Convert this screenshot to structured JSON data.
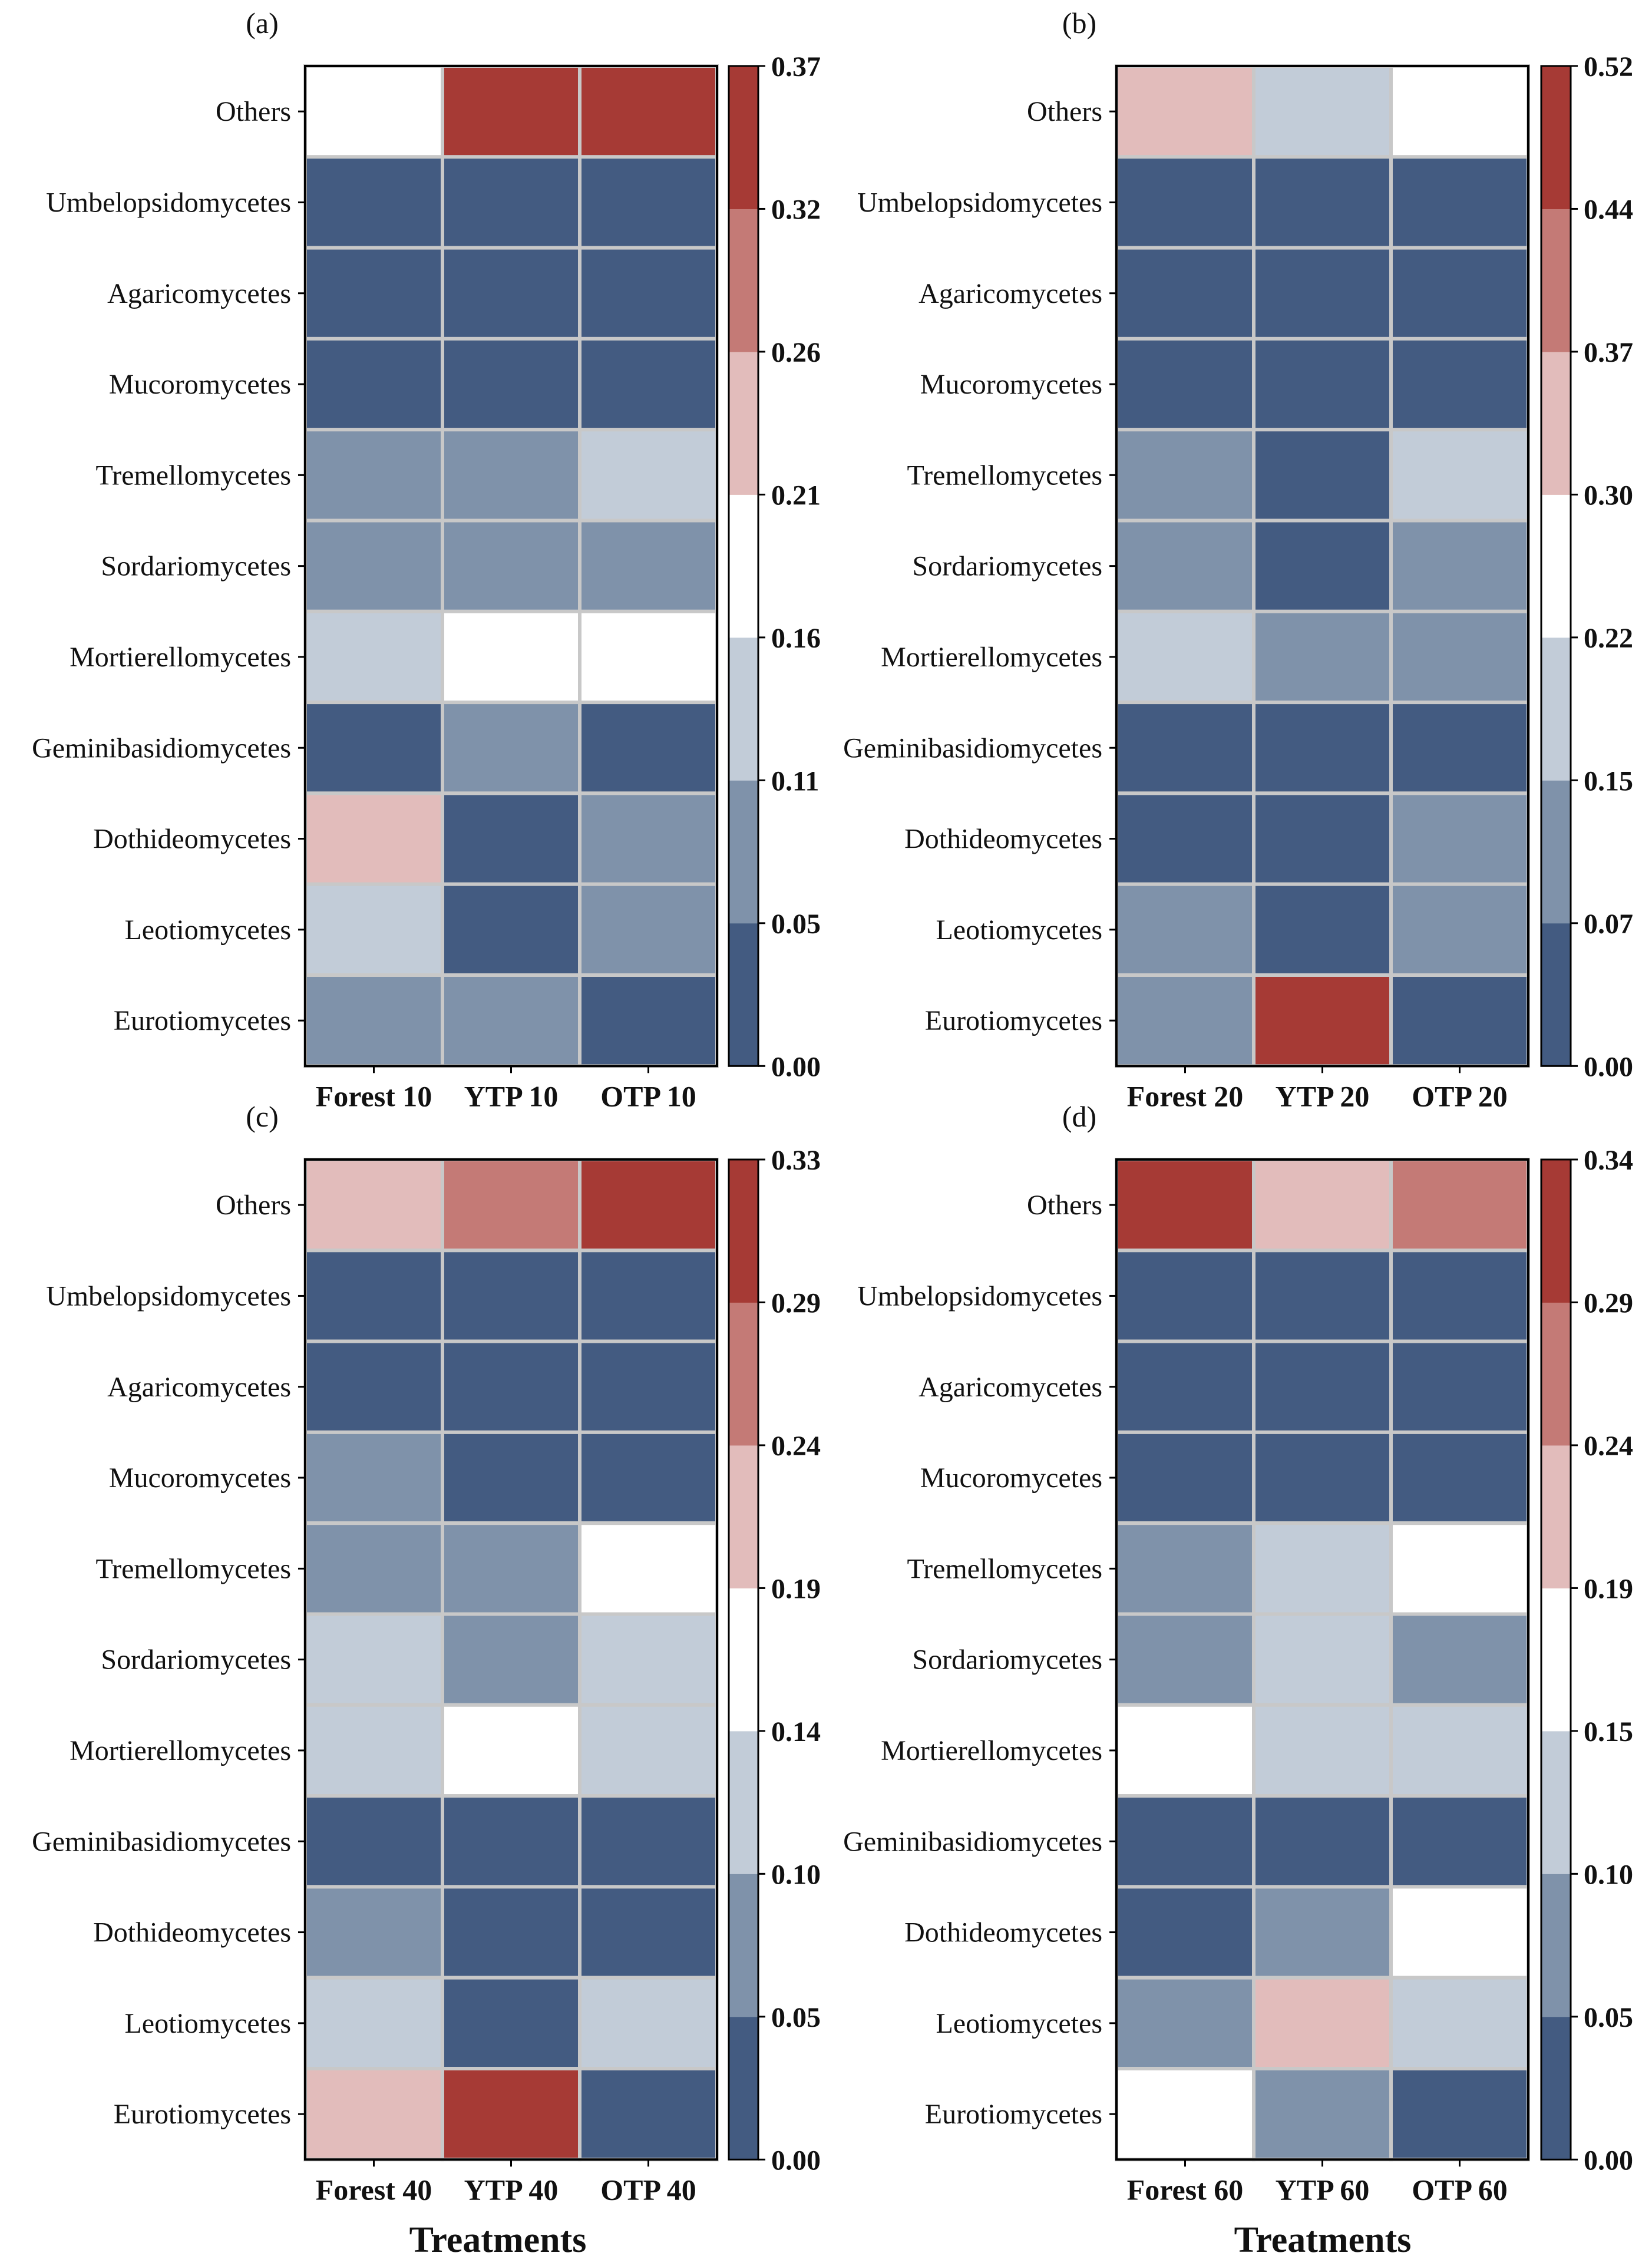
{
  "colors": {
    "bins": [
      "#435b81",
      "#7f92aa",
      "#c2ccd8",
      "#ffffff",
      "#e2bcbb",
      "#c47a76",
      "#a63a35"
    ],
    "grid": "#c8c8c8"
  },
  "xlabel": "Treatments",
  "chart_data": [
    {
      "type": "heatmap",
      "panel": "(a)",
      "rows": [
        "Others",
        "Umbelopsidomycetes",
        "Agaricomycetes",
        "Mucoromycetes",
        "Tremellomycetes",
        "Sordariomycetes",
        "Mortierellomycetes",
        "Geminibasidiomycetes",
        "Dothideomycetes",
        "Leotiomycetes",
        "Eurotiomycetes"
      ],
      "columns": [
        "Forest 10",
        "YTP 10",
        "OTP 10"
      ],
      "colorbar_ticks": [
        "0.00",
        "0.05",
        "0.11",
        "0.16",
        "0.21",
        "0.26",
        "0.32",
        "0.37"
      ],
      "vmin": 0.0,
      "vmax": 0.37,
      "values": [
        [
          0.18,
          0.35,
          0.35
        ],
        [
          0.02,
          0.02,
          0.02
        ],
        [
          0.02,
          0.02,
          0.02
        ],
        [
          0.02,
          0.02,
          0.02
        ],
        [
          0.08,
          0.08,
          0.13
        ],
        [
          0.08,
          0.08,
          0.08
        ],
        [
          0.13,
          0.18,
          0.18
        ],
        [
          0.02,
          0.08,
          0.02
        ],
        [
          0.23,
          0.02,
          0.08
        ],
        [
          0.13,
          0.02,
          0.08
        ],
        [
          0.08,
          0.08,
          0.02
        ]
      ]
    },
    {
      "type": "heatmap",
      "panel": "(b)",
      "rows": [
        "Others",
        "Umbelopsidomycetes",
        "Agaricomycetes",
        "Mucoromycetes",
        "Tremellomycetes",
        "Sordariomycetes",
        "Mortierellomycetes",
        "Geminibasidiomycetes",
        "Dothideomycetes",
        "Leotiomycetes",
        "Eurotiomycetes"
      ],
      "columns": [
        "Forest 20",
        "YTP 20",
        "OTP 20"
      ],
      "colorbar_ticks": [
        "0.00",
        "0.07",
        "0.15",
        "0.22",
        "0.30",
        "0.37",
        "0.44",
        "0.52"
      ],
      "vmin": 0.0,
      "vmax": 0.52,
      "values": [
        [
          0.33,
          0.18,
          0.26
        ],
        [
          0.03,
          0.03,
          0.03
        ],
        [
          0.03,
          0.03,
          0.03
        ],
        [
          0.03,
          0.03,
          0.03
        ],
        [
          0.11,
          0.03,
          0.18
        ],
        [
          0.11,
          0.03,
          0.11
        ],
        [
          0.18,
          0.11,
          0.11
        ],
        [
          0.03,
          0.03,
          0.03
        ],
        [
          0.03,
          0.03,
          0.11
        ],
        [
          0.11,
          0.03,
          0.11
        ],
        [
          0.11,
          0.48,
          0.03
        ]
      ]
    },
    {
      "type": "heatmap",
      "panel": "(c)",
      "rows": [
        "Others",
        "Umbelopsidomycetes",
        "Agaricomycetes",
        "Mucoromycetes",
        "Tremellomycetes",
        "Sordariomycetes",
        "Mortierellomycetes",
        "Geminibasidiomycetes",
        "Dothideomycetes",
        "Leotiomycetes",
        "Eurotiomycetes"
      ],
      "columns": [
        "Forest 40",
        "YTP 40",
        "OTP 40"
      ],
      "colorbar_ticks": [
        "0.00",
        "0.05",
        "0.10",
        "0.14",
        "0.19",
        "0.24",
        "0.29",
        "0.33"
      ],
      "vmin": 0.0,
      "vmax": 0.33,
      "values": [
        [
          0.21,
          0.26,
          0.31
        ],
        [
          0.02,
          0.02,
          0.02
        ],
        [
          0.02,
          0.02,
          0.02
        ],
        [
          0.07,
          0.02,
          0.02
        ],
        [
          0.07,
          0.07,
          0.16
        ],
        [
          0.12,
          0.07,
          0.12
        ],
        [
          0.12,
          0.16,
          0.12
        ],
        [
          0.02,
          0.02,
          0.02
        ],
        [
          0.07,
          0.02,
          0.02
        ],
        [
          0.12,
          0.02,
          0.12
        ],
        [
          0.21,
          0.31,
          0.02
        ]
      ]
    },
    {
      "type": "heatmap",
      "panel": "(d)",
      "rows": [
        "Others",
        "Umbelopsidomycetes",
        "Agaricomycetes",
        "Mucoromycetes",
        "Tremellomycetes",
        "Sordariomycetes",
        "Mortierellomycetes",
        "Geminibasidiomycetes",
        "Dothideomycetes",
        "Leotiomycetes",
        "Eurotiomycetes"
      ],
      "columns": [
        "Forest 60",
        "YTP 60",
        "OTP 60"
      ],
      "colorbar_ticks": [
        "0.00",
        "0.05",
        "0.10",
        "0.15",
        "0.19",
        "0.24",
        "0.29",
        "0.34"
      ],
      "vmin": 0.0,
      "vmax": 0.34,
      "values": [
        [
          0.32,
          0.22,
          0.27
        ],
        [
          0.02,
          0.02,
          0.02
        ],
        [
          0.02,
          0.02,
          0.02
        ],
        [
          0.02,
          0.02,
          0.02
        ],
        [
          0.07,
          0.12,
          0.17
        ],
        [
          0.07,
          0.12,
          0.07
        ],
        [
          0.17,
          0.12,
          0.12
        ],
        [
          0.02,
          0.02,
          0.02
        ],
        [
          0.02,
          0.07,
          0.17
        ],
        [
          0.07,
          0.22,
          0.12
        ],
        [
          0.17,
          0.07,
          0.02
        ]
      ]
    }
  ]
}
